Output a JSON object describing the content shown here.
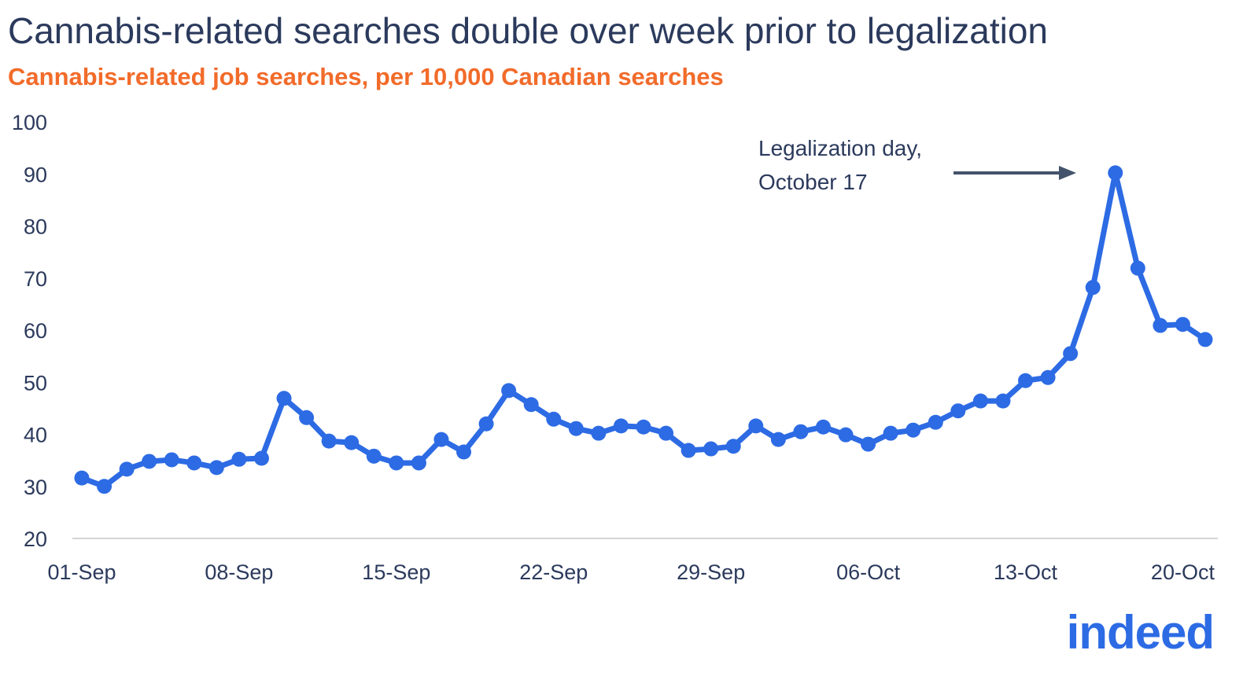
{
  "title": "Cannabis-related searches double over week prior to legalization",
  "subtitle": "Cannabis-related job searches, per 10,000 Canadian searches",
  "logo_text": "indeed",
  "colors": {
    "title": "#2b3a5c",
    "subtitle": "#f26b2a",
    "line": "#2d6be4",
    "arrow": "#44536b"
  },
  "chart_data": {
    "type": "line",
    "title": "Cannabis-related searches double over week prior to legalization",
    "subtitle": "Cannabis-related job searches, per 10,000 Canadian searches",
    "xlabel": "",
    "ylabel": "",
    "ylim": [
      20,
      100
    ],
    "yticks": [
      20,
      30,
      40,
      50,
      60,
      70,
      80,
      90,
      100
    ],
    "xtick_labels": [
      "01-Sep",
      "08-Sep",
      "15-Sep",
      "22-Sep",
      "29-Sep",
      "06-Oct",
      "13-Oct",
      "20-Oct"
    ],
    "grid": false,
    "x_start": "2018-09-01",
    "x_end": "2018-10-21",
    "values": [
      31.6,
      30.0,
      33.3,
      34.8,
      35.1,
      34.5,
      33.6,
      35.2,
      35.4,
      46.9,
      43.2,
      38.7,
      38.4,
      35.8,
      34.5,
      34.5,
      39.0,
      36.6,
      42.0,
      48.4,
      45.7,
      42.9,
      41.1,
      40.2,
      41.6,
      41.4,
      40.2,
      36.9,
      37.2,
      37.7,
      41.6,
      39.0,
      40.5,
      41.4,
      39.9,
      38.1,
      40.2,
      40.8,
      42.3,
      44.5,
      46.4,
      46.4,
      50.3,
      50.9,
      55.5,
      68.2,
      90.2,
      71.9,
      60.9,
      61.1,
      58.2
    ],
    "annotations": [
      {
        "text_line1": "Legalization day,",
        "text_line2": "October 17",
        "target_date": "2018-10-17"
      }
    ]
  }
}
